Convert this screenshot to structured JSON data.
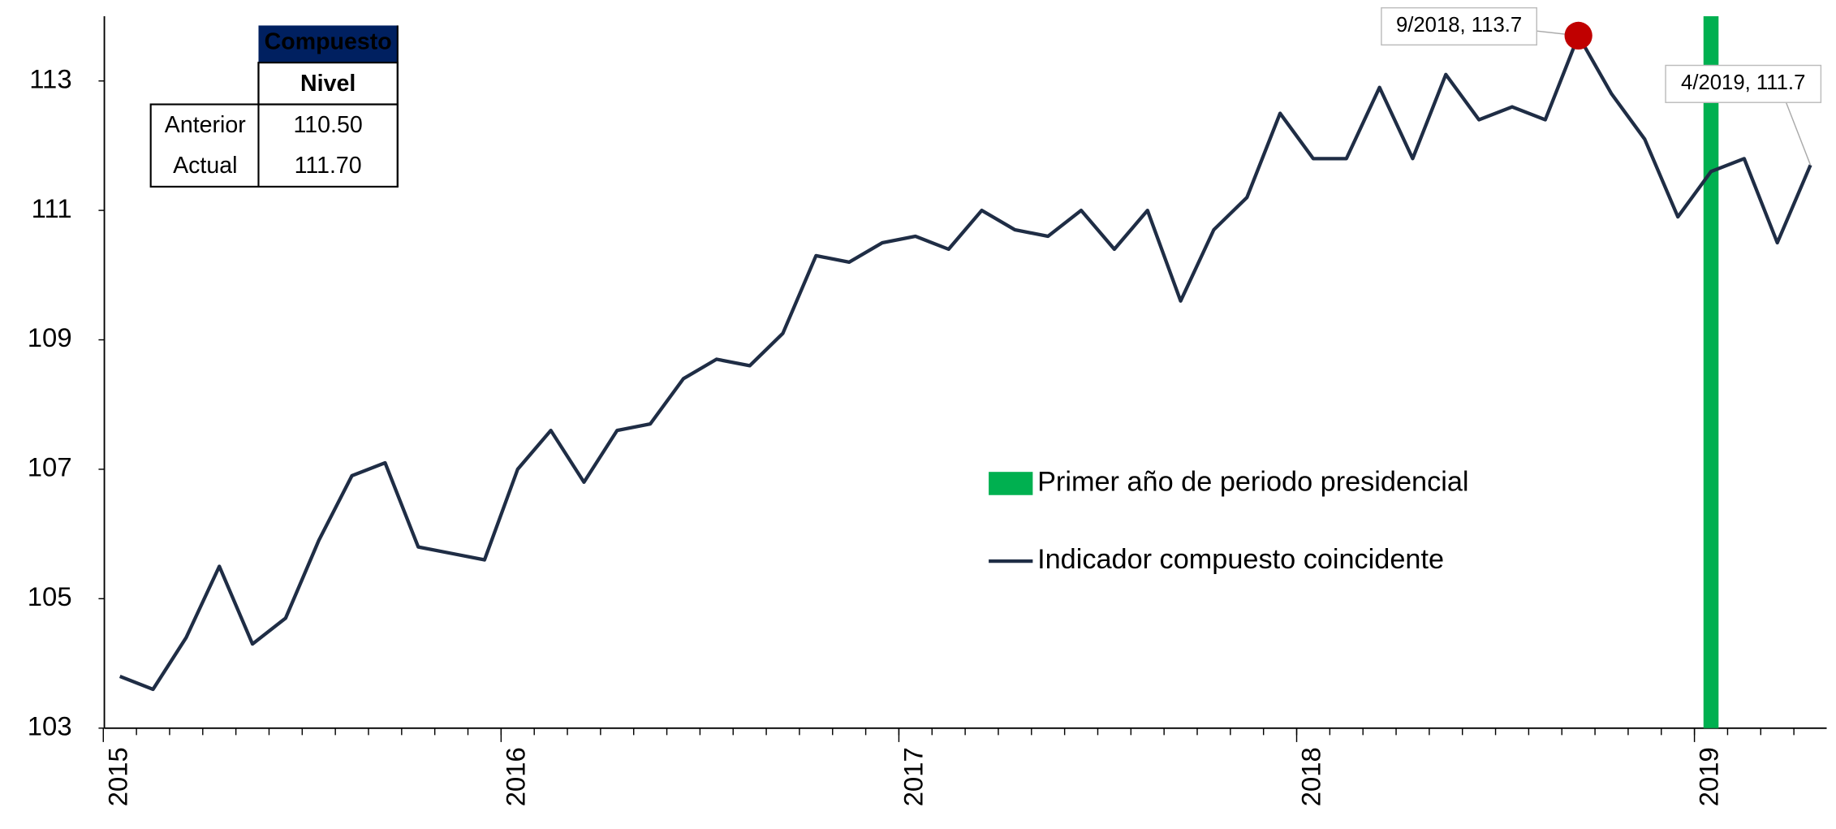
{
  "chart_data": {
    "type": "line",
    "categories": [
      "2015",
      null,
      null,
      null,
      null,
      null,
      null,
      null,
      null,
      null,
      null,
      null,
      "2016",
      null,
      null,
      null,
      null,
      null,
      null,
      null,
      null,
      null,
      null,
      null,
      "2017",
      null,
      null,
      null,
      null,
      null,
      null,
      null,
      null,
      null,
      null,
      null,
      "2018",
      null,
      null,
      null,
      null,
      null,
      null,
      null,
      null,
      null,
      null,
      null,
      "2019",
      null,
      null,
      null
    ],
    "series": [
      {
        "name": "Primer año de periodo presidencial",
        "type": "bar",
        "color": "#00b050",
        "values": [
          null,
          null,
          null,
          null,
          null,
          null,
          null,
          null,
          null,
          null,
          null,
          null,
          null,
          null,
          null,
          null,
          null,
          null,
          null,
          null,
          null,
          null,
          null,
          null,
          null,
          null,
          null,
          null,
          null,
          null,
          null,
          null,
          null,
          null,
          null,
          null,
          null,
          null,
          null,
          null,
          null,
          null,
          null,
          null,
          null,
          null,
          null,
          null,
          114,
          null,
          null,
          null
        ]
      },
      {
        "name": "Indicador  compuesto coincidente",
        "type": "line",
        "color": "#1f2d45",
        "values": [
          103.8,
          103.6,
          104.4,
          105.5,
          104.3,
          104.7,
          105.9,
          106.9,
          107.1,
          105.8,
          105.7,
          105.6,
          107.0,
          107.6,
          106.8,
          107.6,
          107.7,
          108.4,
          108.7,
          108.6,
          109.1,
          110.3,
          110.2,
          110.5,
          110.6,
          110.4,
          111.0,
          110.7,
          110.6,
          111.0,
          110.4,
          111.0,
          109.6,
          110.7,
          111.2,
          112.5,
          111.8,
          111.8,
          112.9,
          111.8,
          113.1,
          112.4,
          112.6,
          112.4,
          113.7,
          112.8,
          112.1,
          110.9,
          111.6,
          111.8,
          110.5,
          111.7
        ]
      }
    ],
    "ylim": [
      103,
      114
    ],
    "yticks": [
      103,
      105,
      107,
      109,
      111,
      113
    ],
    "legend": "center-right",
    "annotations": [
      {
        "text": "9/2018, 113.7",
        "point": 44,
        "marker_color": "#c00000"
      },
      {
        "text": "4/2019, 111.7",
        "point": 51
      }
    ],
    "table": {
      "header": "Compuesto",
      "column": "Nivel",
      "rows": [
        [
          "Anterior",
          "110.50"
        ],
        [
          "Actual",
          "111.70"
        ]
      ],
      "header_color": "#002060"
    }
  }
}
